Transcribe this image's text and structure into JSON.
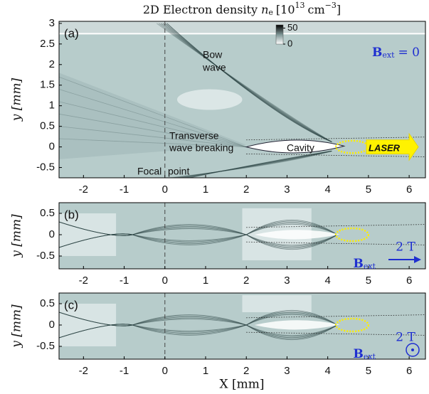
{
  "chart_data": [
    {
      "type": "heatmap",
      "panel": "(a)",
      "title": "2D Electron density",
      "title_var": "n",
      "title_sub": "e",
      "title_unit": "[10",
      "title_exp": "13",
      "title_unit_tail": "cm",
      "title_exp2": "−3",
      "title_close": "]",
      "ylabel": "y [mm]",
      "xlim": [
        -2.6,
        6.4
      ],
      "xticks": [
        -2,
        -1,
        0,
        1,
        2,
        3,
        4,
        5,
        6
      ],
      "ylim": [
        -0.75,
        3.05
      ],
      "yticks": [
        -0.5,
        0,
        0.5,
        1,
        1.5,
        2,
        2.5,
        3
      ],
      "colorbar": {
        "clim": [
          0,
          60
        ],
        "ticks": [
          0,
          50
        ]
      },
      "annotations": [
        "Bow",
        "wave",
        "Transverse",
        "wave breaking",
        "Cavity",
        "Focal",
        "point",
        "LASER"
      ],
      "field": {
        "symbol": "B",
        "sub": "ext",
        "text": "= 0"
      }
    },
    {
      "type": "heatmap",
      "panel": "(b)",
      "ylabel": "y [mm]",
      "xlim": [
        -2.6,
        6.4
      ],
      "xticks": [
        -2,
        -1,
        0,
        1,
        2,
        3,
        4,
        5,
        6
      ],
      "ylim": [
        -0.8,
        0.75
      ],
      "yticks": [
        -0.5,
        0,
        0.5
      ],
      "field": {
        "value": "2 T",
        "symbol": "B",
        "sub": "ext"
      }
    },
    {
      "type": "heatmap",
      "panel": "(c)",
      "ylabel": "y [mm]",
      "xlabel": "X [mm]",
      "xlim": [
        -2.6,
        6.4
      ],
      "xticks": [
        -2,
        -1,
        0,
        1,
        2,
        3,
        4,
        5,
        6
      ],
      "ylim": [
        -0.8,
        0.75
      ],
      "yticks": [
        -0.5,
        0,
        0.5
      ],
      "field": {
        "value": "2 T",
        "symbol": "B",
        "sub": "ext"
      }
    }
  ]
}
